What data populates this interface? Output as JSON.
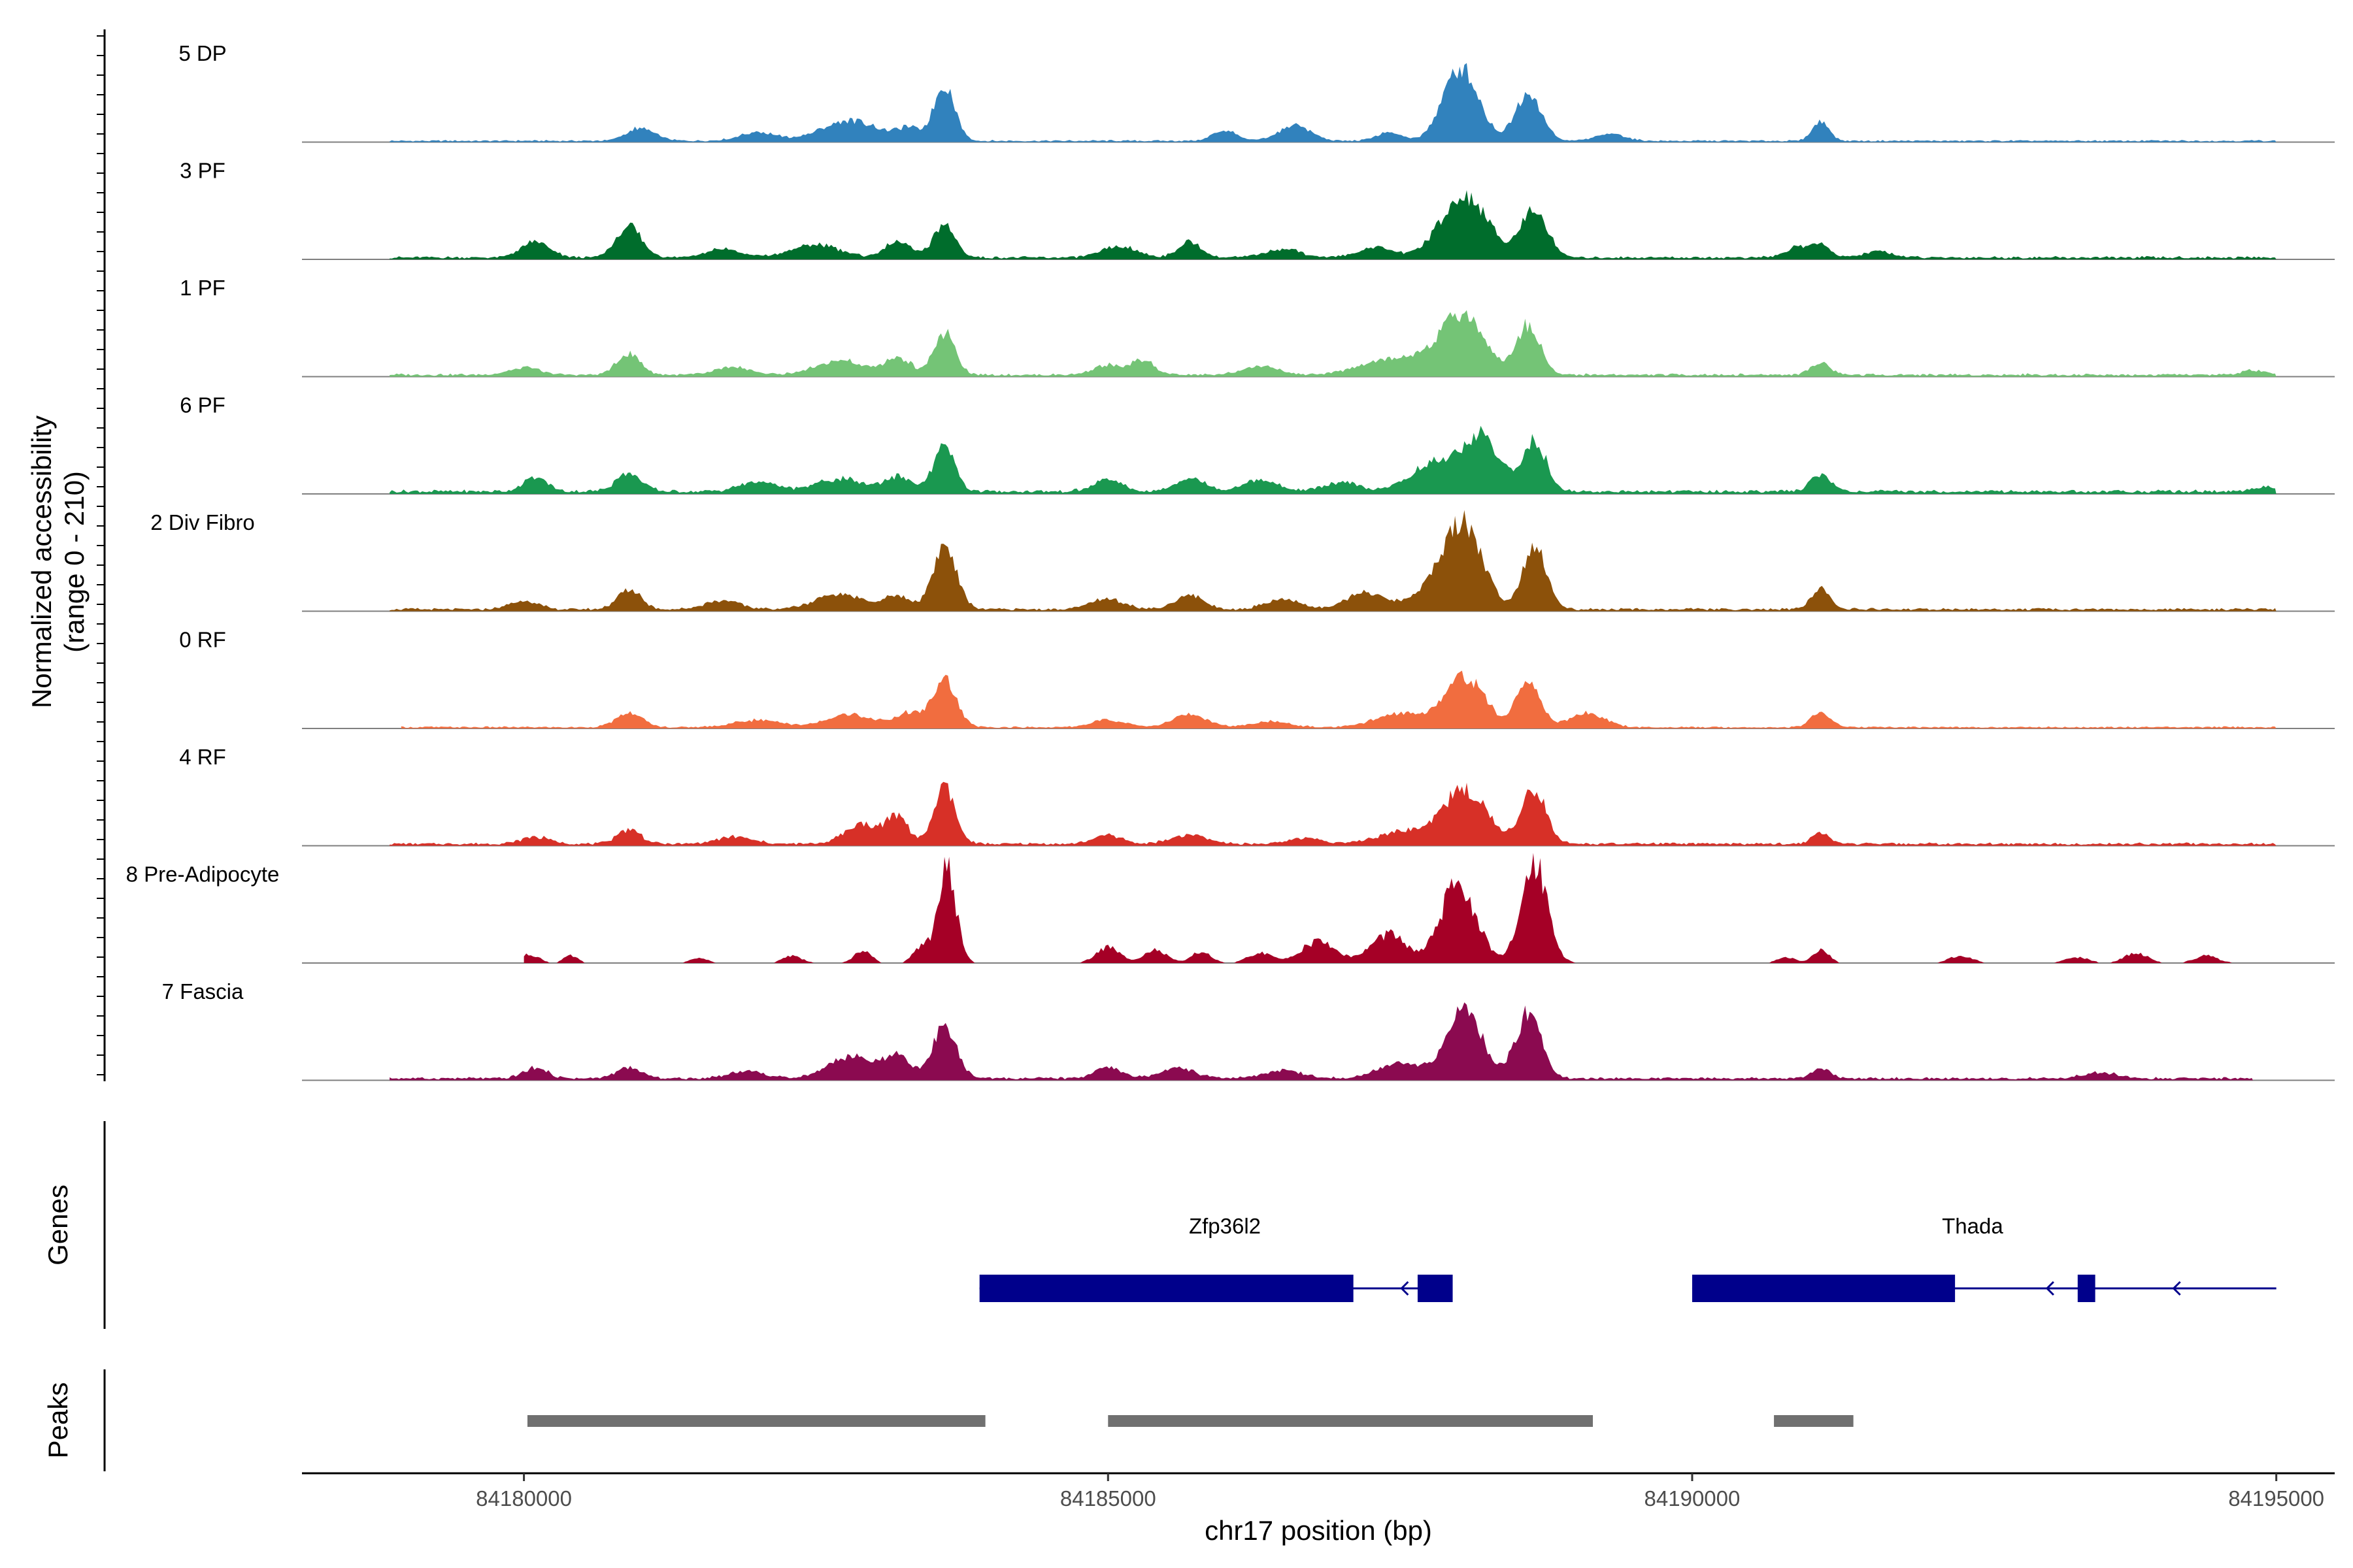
{
  "chart_data": {
    "type": "area",
    "title": "",
    "xlabel": "chr17 position (bp)",
    "ylabel": "Normalized accessibility",
    "ylabel_range": "(range 0 - 210)",
    "ylim": [
      0,
      210
    ],
    "xlim": [
      84178100,
      84195500
    ],
    "x_ticks": [
      84180000,
      84185000,
      84190000,
      84195000
    ],
    "x_tick_labels": [
      "84180000",
      "84185000",
      "84190000",
      "84195000"
    ],
    "track_labels": {
      "genes": "Genes",
      "peaks": "Peaks"
    },
    "series": [
      {
        "name": "5 DP",
        "color": "#3182bd",
        "extent": [
          84178850,
          84195000
        ],
        "background": 2,
        "peaks": [
          [
            84181000,
            18,
            120
          ],
          [
            84182000,
            12,
            150
          ],
          [
            84182800,
            28,
            250
          ],
          [
            84183300,
            15,
            100
          ],
          [
            84183600,
            78,
            90
          ],
          [
            84186000,
            15,
            100
          ],
          [
            84186600,
            22,
            130
          ],
          [
            84187400,
            12,
            100
          ],
          [
            84188020,
            102,
            150
          ],
          [
            84188600,
            68,
            110
          ],
          [
            84189300,
            10,
            120
          ],
          [
            84191100,
            28,
            70
          ]
        ]
      },
      {
        "name": "3 PF",
        "color": "#006d2c",
        "extent": [
          84178850,
          84195000
        ],
        "background": 3,
        "peaks": [
          [
            84180100,
            22,
            120
          ],
          [
            84180900,
            42,
            110
          ],
          [
            84181700,
            12,
            150
          ],
          [
            84182500,
            18,
            200
          ],
          [
            84183200,
            22,
            110
          ],
          [
            84183600,
            48,
            90
          ],
          [
            84185100,
            15,
            150
          ],
          [
            84185700,
            22,
            100
          ],
          [
            84186500,
            12,
            150
          ],
          [
            84187300,
            14,
            150
          ],
          [
            84188050,
            86,
            200
          ],
          [
            84188650,
            68,
            110
          ],
          [
            84190900,
            14,
            100
          ],
          [
            84191100,
            16,
            90
          ],
          [
            84191600,
            8,
            120
          ]
        ]
      },
      {
        "name": "1 PF",
        "color": "#74c476",
        "extent": [
          84178850,
          84195000
        ],
        "background": 3,
        "peaks": [
          [
            84180000,
            10,
            130
          ],
          [
            84180900,
            30,
            100
          ],
          [
            84181800,
            10,
            150
          ],
          [
            84182700,
            20,
            200
          ],
          [
            84183200,
            24,
            110
          ],
          [
            84183600,
            58,
            90
          ],
          [
            84185000,
            14,
            120
          ],
          [
            84185300,
            20,
            100
          ],
          [
            84186300,
            12,
            150
          ],
          [
            84187300,
            16,
            200
          ],
          [
            84187700,
            22,
            200
          ],
          [
            84188050,
            80,
            180
          ],
          [
            84188600,
            70,
            100
          ],
          [
            84191100,
            18,
            80
          ],
          [
            84194800,
            6,
            90
          ]
        ]
      },
      {
        "name": "6 PF",
        "color": "#1a9850",
        "extent": [
          84178850,
          84195000
        ],
        "background": 4,
        "peaks": [
          [
            84180100,
            20,
            100
          ],
          [
            84180900,
            25,
            110
          ],
          [
            84182000,
            14,
            150
          ],
          [
            84182700,
            18,
            200
          ],
          [
            84183200,
            20,
            120
          ],
          [
            84183600,
            62,
            90
          ],
          [
            84185000,
            16,
            120
          ],
          [
            84185700,
            20,
            120
          ],
          [
            84186300,
            16,
            150
          ],
          [
            84187000,
            12,
            150
          ],
          [
            84187800,
            40,
            200
          ],
          [
            84188200,
            75,
            150
          ],
          [
            84188650,
            70,
            100
          ],
          [
            84191100,
            22,
            90
          ],
          [
            84194900,
            6,
            100
          ]
        ]
      },
      {
        "name": "2 Div Fibro",
        "color": "#8c510a",
        "extent": [
          84178850,
          84195000
        ],
        "background": 3,
        "peaks": [
          [
            84180000,
            12,
            120
          ],
          [
            84180900,
            28,
            100
          ],
          [
            84181700,
            12,
            150
          ],
          [
            84182700,
            22,
            200
          ],
          [
            84183200,
            18,
            110
          ],
          [
            84183600,
            88,
            100
          ],
          [
            84185000,
            14,
            150
          ],
          [
            84185700,
            20,
            120
          ],
          [
            84186500,
            14,
            150
          ],
          [
            84187200,
            24,
            150
          ],
          [
            84187800,
            28,
            200
          ],
          [
            84188050,
            110,
            160
          ],
          [
            84188650,
            90,
            100
          ],
          [
            84191100,
            28,
            80
          ]
        ]
      },
      {
        "name": "0 RF",
        "color": "#f16d3f",
        "extent": [
          84178950,
          84195000
        ],
        "background": 2,
        "peaks": [
          [
            84180900,
            20,
            110
          ],
          [
            84182000,
            10,
            200
          ],
          [
            84182800,
            18,
            200
          ],
          [
            84183300,
            20,
            110
          ],
          [
            84183600,
            66,
            100
          ],
          [
            84185000,
            10,
            140
          ],
          [
            84185700,
            18,
            150
          ],
          [
            84186400,
            8,
            150
          ],
          [
            84187500,
            20,
            200
          ],
          [
            84188050,
            70,
            170
          ],
          [
            84188600,
            66,
            100
          ],
          [
            84189100,
            20,
            150
          ],
          [
            84191100,
            22,
            80
          ]
        ]
      },
      {
        "name": "4 RF",
        "color": "#d73027",
        "extent": [
          84178850,
          84195000
        ],
        "background": 3,
        "peaks": [
          [
            84180100,
            10,
            120
          ],
          [
            84180900,
            20,
            100
          ],
          [
            84181800,
            10,
            150
          ],
          [
            84182900,
            28,
            150
          ],
          [
            84183200,
            36,
            90
          ],
          [
            84183600,
            78,
            90
          ],
          [
            84185000,
            12,
            120
          ],
          [
            84185700,
            12,
            150
          ],
          [
            84186700,
            8,
            150
          ],
          [
            84187500,
            16,
            200
          ],
          [
            84188050,
            74,
            200
          ],
          [
            84188650,
            78,
            100
          ],
          [
            84191100,
            16,
            70
          ]
        ]
      },
      {
        "name": "8 Pre-Adipocyte",
        "color": "#a50026",
        "extent": [
          84180000,
          84195000
        ],
        "background": 0,
        "peaks": [
          [
            84180050,
            12,
            80
          ],
          [
            84180400,
            10,
            60
          ],
          [
            84181500,
            8,
            70
          ],
          [
            84182300,
            10,
            80
          ],
          [
            84182900,
            18,
            70
          ],
          [
            84183400,
            20,
            70
          ],
          [
            84183620,
            130,
            80
          ],
          [
            84185000,
            22,
            100
          ],
          [
            84185400,
            18,
            100
          ],
          [
            84185800,
            16,
            80
          ],
          [
            84186300,
            14,
            100
          ],
          [
            84186800,
            30,
            150
          ],
          [
            84187400,
            40,
            150
          ],
          [
            84188000,
            110,
            150
          ],
          [
            84188650,
            145,
            110
          ],
          [
            84190800,
            8,
            80
          ],
          [
            84191100,
            18,
            70
          ],
          [
            84192300,
            10,
            100
          ],
          [
            84193300,
            8,
            100
          ],
          [
            84193800,
            14,
            100
          ],
          [
            84194400,
            10,
            100
          ]
        ]
      },
      {
        "name": "7 Fascia",
        "color": "#8b0a50",
        "extent": [
          84178850,
          84194800
        ],
        "background": 3,
        "peaks": [
          [
            84180100,
            15,
            100
          ],
          [
            84180900,
            14,
            110
          ],
          [
            84181900,
            10,
            150
          ],
          [
            84182800,
            30,
            200
          ],
          [
            84183200,
            28,
            110
          ],
          [
            84183600,
            74,
            100
          ],
          [
            84185000,
            14,
            120
          ],
          [
            84185600,
            14,
            150
          ],
          [
            84186500,
            12,
            150
          ],
          [
            84187500,
            20,
            200
          ],
          [
            84188050,
            96,
            150
          ],
          [
            84188600,
            92,
            110
          ],
          [
            84191100,
            14,
            80
          ],
          [
            84193500,
            8,
            150
          ]
        ]
      }
    ],
    "genes": [
      {
        "name": "Zfp36l2",
        "color": "#00008b",
        "strand": "-",
        "span": [
          84183900,
          84187900
        ],
        "exons": [
          [
            84183900,
            84187100,
            "thick"
          ],
          [
            84187650,
            84187950,
            "thick"
          ]
        ],
        "label_at": 84186000
      },
      {
        "name": "Thada",
        "color": "#00008b",
        "strand": "-",
        "span": [
          84190000,
          84195000
        ],
        "exons": [
          [
            84190000,
            84192250,
            "thick"
          ],
          [
            84193300,
            84193450,
            "thick"
          ]
        ],
        "label_at": 84192400
      }
    ],
    "peak_regions": [
      [
        84180030,
        84183950
      ],
      [
        84185000,
        84189150
      ],
      [
        84190700,
        84191380
      ]
    ],
    "peak_color": "#707070"
  }
}
